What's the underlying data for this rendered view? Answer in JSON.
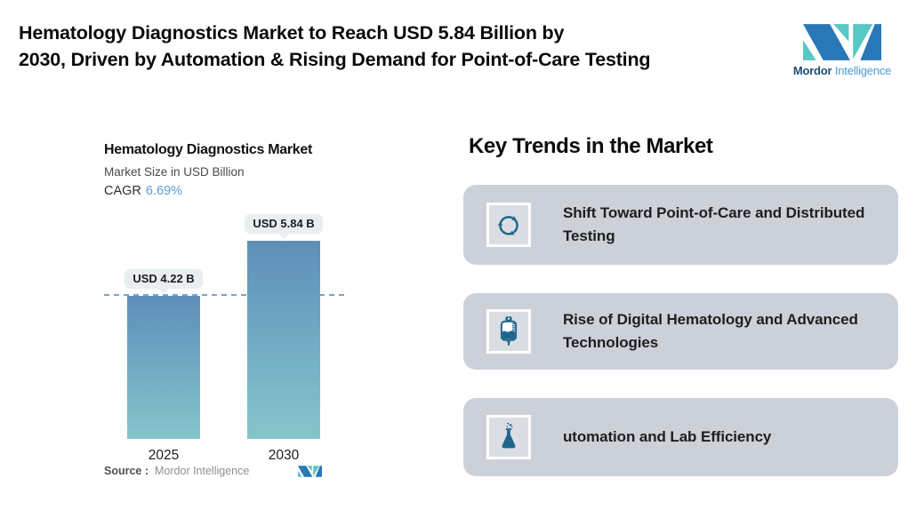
{
  "header": {
    "title_lines": [
      "Hematology Diagnostics Market to Reach USD 5.84 Billion by",
      "2030, Driven by Automation & Rising Demand for Point-of-Care Testing"
    ],
    "brand": {
      "word1": "Mordor",
      "word2": "Intelligence"
    }
  },
  "chart": {
    "title": "Hematology Diagnostics Market",
    "subtitle": "Market Size in USD Billion",
    "cagr_label": "CAGR",
    "cagr_value": "6.69%",
    "source_label": "Source :",
    "source_value": "Mordor Intelligence"
  },
  "chart_data": {
    "type": "bar",
    "title": "Hematology Diagnostics Market",
    "ylabel": "Market Size in USD Billion",
    "unit": "USD Billion",
    "cagr_percent": 6.69,
    "categories": [
      "2025",
      "2030"
    ],
    "values": [
      4.22,
      5.84
    ],
    "value_labels": [
      "USD 4.22 B",
      "USD 5.84 B"
    ],
    "ylim": [
      0,
      6.65
    ],
    "grid": false,
    "legend": "none",
    "annotations": [
      "horizontal dashed reference line at 4.22 (2025 level)"
    ]
  },
  "trends": {
    "heading": "Key Trends in the Market",
    "items": [
      {
        "icon": "cycle-arrows-icon",
        "label": "Shift Toward Point-of-Care and Distributed Testing"
      },
      {
        "icon": "blood-bag-icon",
        "label": "Rise of Digital Hematology and Advanced Technologies"
      },
      {
        "icon": "flask-icon",
        "label": "utomation and Lab Efficiency"
      }
    ]
  },
  "colors": {
    "accent_blue": "#5a9ed8",
    "bar_gradient_top": "#5e8fba",
    "bar_gradient_bottom": "#85c5cb",
    "card_bg": "#ccd1d9",
    "icon_color": "#20658b",
    "pill_bg": "#e9eef0",
    "dash_line": "#7aa3c8",
    "brand_teal": "#56c8c6",
    "brand_blue": "#2878b8"
  }
}
